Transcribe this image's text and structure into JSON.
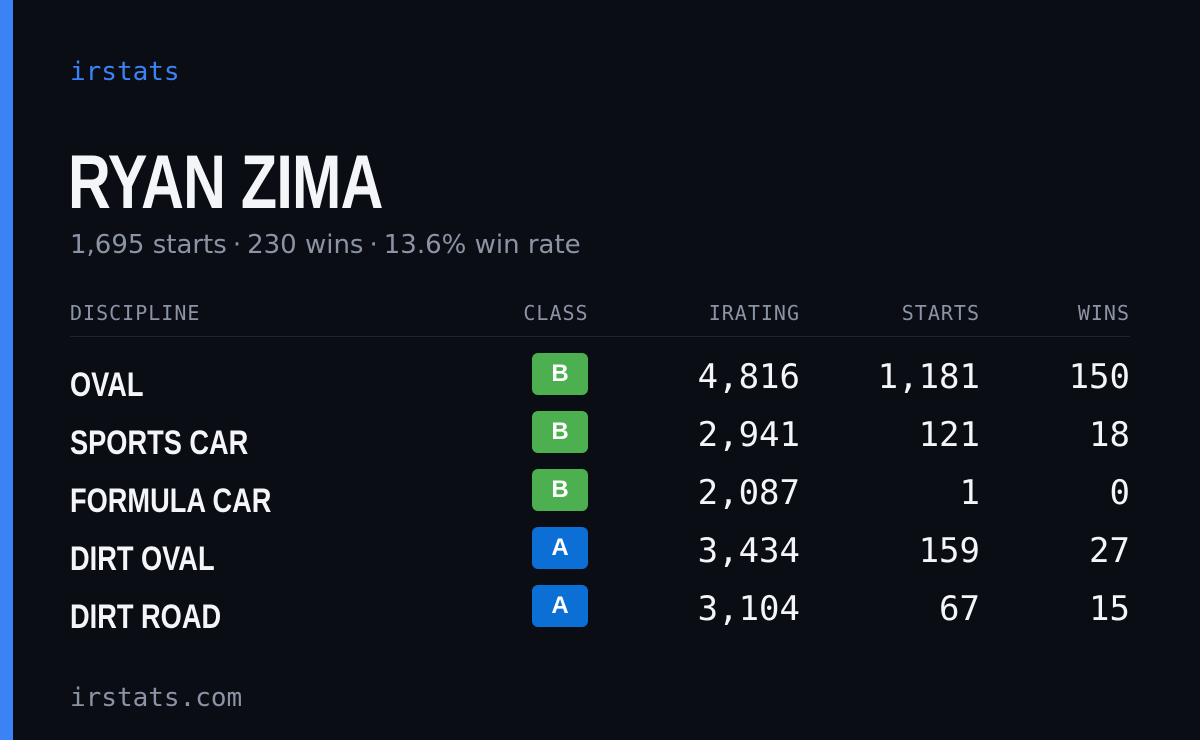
{
  "brand": "irstats",
  "driver": {
    "name": "RYAN ZIMA",
    "starts_text": "1,695 starts",
    "wins_text": "230 wins",
    "win_rate_text": "13.6% win rate",
    "separator": "·"
  },
  "table": {
    "headers": {
      "discipline": "DISCIPLINE",
      "class": "CLASS",
      "irating": "IRATING",
      "starts": "STARTS",
      "wins": "WINS"
    },
    "rows": [
      {
        "discipline": "OVAL",
        "class": "B",
        "irating": "4,816",
        "starts": "1,181",
        "wins": "150"
      },
      {
        "discipline": "SPORTS CAR",
        "class": "B",
        "irating": "2,941",
        "starts": "121",
        "wins": "18"
      },
      {
        "discipline": "FORMULA CAR",
        "class": "B",
        "irating": "2,087",
        "starts": "1",
        "wins": "0"
      },
      {
        "discipline": "DIRT OVAL",
        "class": "A",
        "irating": "3,434",
        "starts": "159",
        "wins": "27"
      },
      {
        "discipline": "DIRT ROAD",
        "class": "A",
        "irating": "3,104",
        "starts": "67",
        "wins": "15"
      }
    ]
  },
  "footer": "irstats.com",
  "colors": {
    "background": "#0a0d14",
    "accent": "#3b82f6",
    "class_b": "#4caf50",
    "class_a": "#0b6fd6",
    "muted_text": "#8b93a5",
    "primary_text": "#f4f5f8"
  }
}
